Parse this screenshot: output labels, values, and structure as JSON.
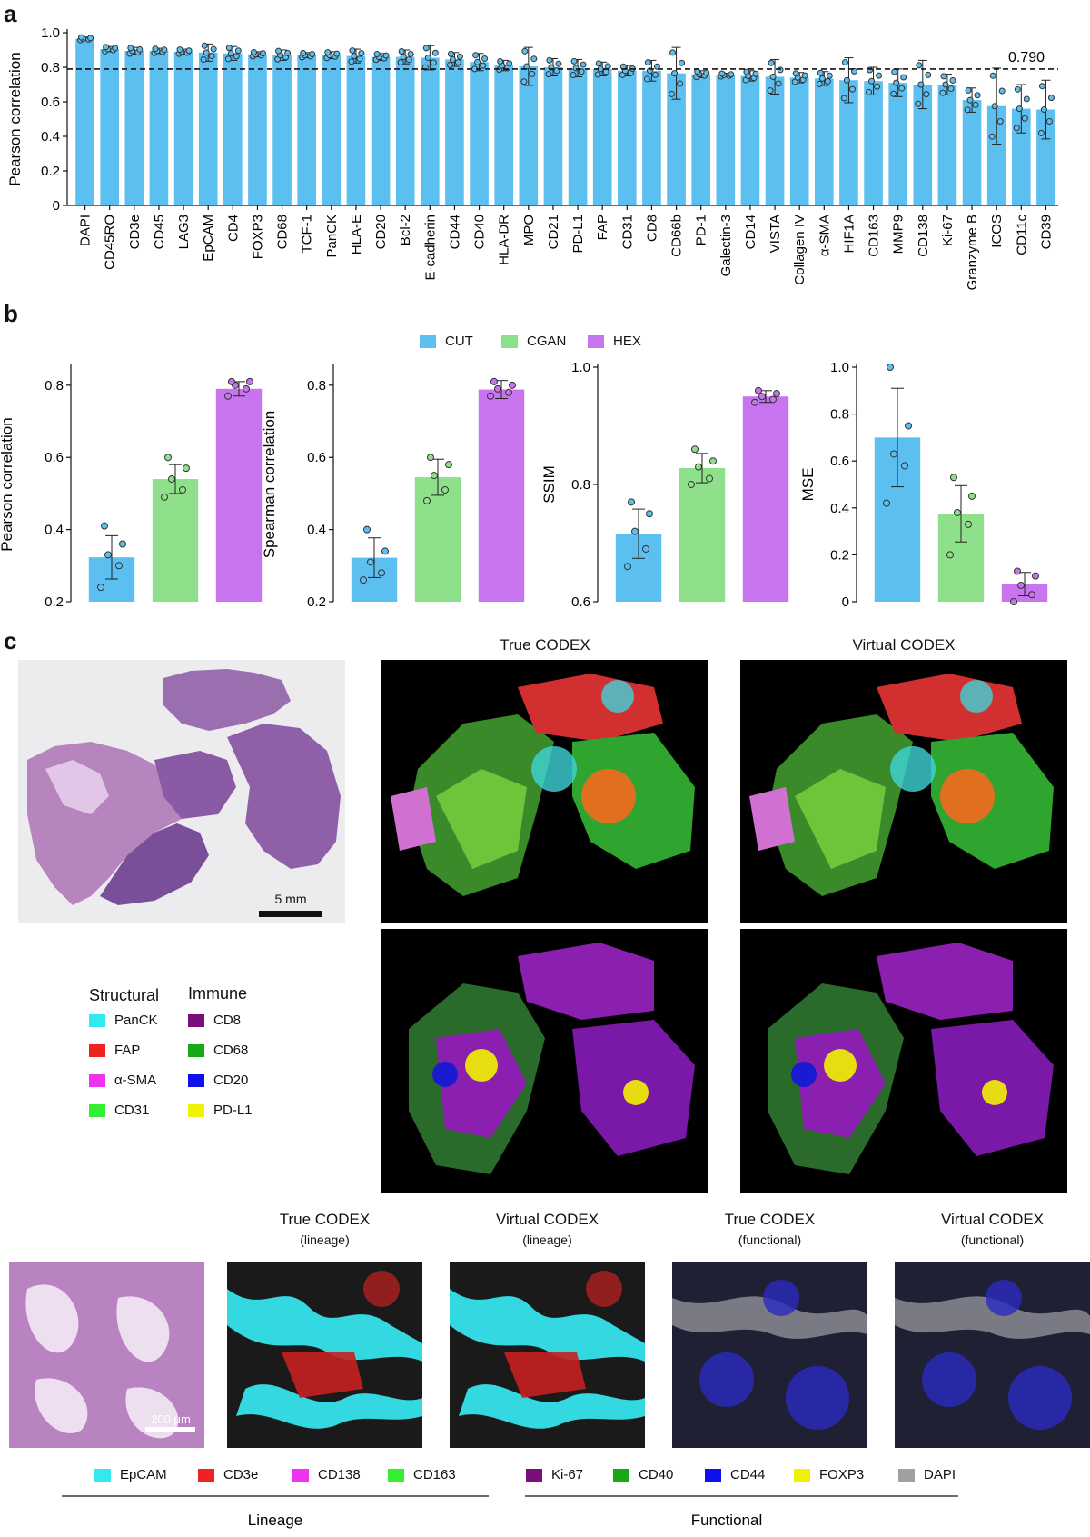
{
  "panel_labels": {
    "a": "a",
    "b": "b",
    "c": "c"
  },
  "colors": {
    "cut": "#5bbff0",
    "cgan": "#8fe08a",
    "hex": "#c774ee",
    "dot_edge": "#333333"
  },
  "chart_data": [
    {
      "id": "a",
      "type": "bar",
      "title": "",
      "ylabel": "Pearson correlation",
      "ylim": [
        0,
        1.0
      ],
      "yticks": [
        "0",
        "0.2",
        "0.4",
        "0.6",
        "0.8",
        "1.0"
      ],
      "reference_line": 0.79,
      "reference_label": "0.790",
      "categories": [
        "DAPI",
        "CD45RO",
        "CD3e",
        "CD45",
        "LAG3",
        "EpCAM",
        "CD4",
        "FOXP3",
        "CD68",
        "TCF-1",
        "PanCK",
        "HLA-E",
        "CD20",
        "Bcl-2",
        "E-cadherin",
        "CD44",
        "CD40",
        "HLA-DR",
        "MPO",
        "CD21",
        "PD-L1",
        "FAP",
        "CD31",
        "CD8",
        "CD66b",
        "PD-1",
        "Galectin-3",
        "CD14",
        "VISTA",
        "Collagen IV",
        "α-SMA",
        "HIF1A",
        "CD163",
        "MMP9",
        "CD138",
        "Ki-67",
        "Granzyme B",
        "ICOS",
        "CD11c",
        "CD39"
      ],
      "values": [
        0.965,
        0.905,
        0.895,
        0.895,
        0.89,
        0.885,
        0.88,
        0.875,
        0.87,
        0.87,
        0.87,
        0.865,
        0.86,
        0.86,
        0.855,
        0.845,
        0.83,
        0.81,
        0.805,
        0.8,
        0.795,
        0.79,
        0.78,
        0.78,
        0.765,
        0.76,
        0.755,
        0.75,
        0.745,
        0.74,
        0.735,
        0.725,
        0.72,
        0.71,
        0.7,
        0.7,
        0.61,
        0.575,
        0.56,
        0.555
      ],
      "errors": [
        0.01,
        0.015,
        0.02,
        0.015,
        0.015,
        0.05,
        0.04,
        0.015,
        0.03,
        0.015,
        0.02,
        0.04,
        0.02,
        0.04,
        0.07,
        0.04,
        0.05,
        0.03,
        0.11,
        0.05,
        0.05,
        0.04,
        0.03,
        0.06,
        0.15,
        0.02,
        0.01,
        0.03,
        0.1,
        0.03,
        0.04,
        0.13,
        0.08,
        0.08,
        0.14,
        0.06,
        0.07,
        0.22,
        0.14,
        0.17
      ]
    },
    {
      "id": "b1",
      "type": "bar",
      "ylabel": "Pearson correlation",
      "ylim": [
        0.2,
        0.85
      ],
      "yticks": [
        "0.2",
        "0.4",
        "0.6",
        "0.8"
      ],
      "ytick_values": [
        0.2,
        0.4,
        0.6,
        0.8
      ],
      "categories": [
        "CUT",
        "CGAN",
        "HEX"
      ],
      "values": [
        0.323,
        0.54,
        0.79
      ],
      "errors": [
        0.06,
        0.04,
        0.02
      ],
      "points": [
        [
          0.24,
          0.3,
          0.33,
          0.36,
          0.41
        ],
        [
          0.49,
          0.51,
          0.54,
          0.57,
          0.6
        ],
        [
          0.77,
          0.79,
          0.8,
          0.81,
          0.81
        ]
      ]
    },
    {
      "id": "b2",
      "type": "bar",
      "ylabel": "Spearman correlation",
      "ylim": [
        0.2,
        0.85
      ],
      "yticks": [
        "0.2",
        "0.4",
        "0.6",
        "0.8"
      ],
      "ytick_values": [
        0.2,
        0.4,
        0.6,
        0.8
      ],
      "categories": [
        "CUT",
        "CGAN",
        "HEX"
      ],
      "values": [
        0.322,
        0.545,
        0.788
      ],
      "errors": [
        0.055,
        0.05,
        0.025
      ],
      "points": [
        [
          0.26,
          0.28,
          0.31,
          0.34,
          0.4
        ],
        [
          0.48,
          0.51,
          0.55,
          0.58,
          0.6
        ],
        [
          0.77,
          0.78,
          0.79,
          0.8,
          0.81
        ]
      ]
    },
    {
      "id": "b3",
      "type": "bar",
      "ylabel": "SSIM",
      "ylim": [
        0.6,
        1.0
      ],
      "yticks": [
        "0.6",
        "0.8",
        "1.0"
      ],
      "ytick_values": [
        0.6,
        0.8,
        1.0
      ],
      "categories": [
        "CUT",
        "CGAN",
        "HEX"
      ],
      "values": [
        0.716,
        0.828,
        0.95
      ],
      "errors": [
        0.042,
        0.025,
        0.01
      ],
      "points": [
        [
          0.66,
          0.69,
          0.72,
          0.75,
          0.77
        ],
        [
          0.8,
          0.81,
          0.83,
          0.84,
          0.86
        ],
        [
          0.94,
          0.945,
          0.95,
          0.955,
          0.96
        ]
      ]
    },
    {
      "id": "b4",
      "type": "bar",
      "ylabel": "MSE",
      "ylim": [
        0,
        1.0
      ],
      "yticks": [
        "0",
        "0.2",
        "0.4",
        "0.6",
        "0.8",
        "1.0"
      ],
      "ytick_values": [
        0,
        0.2,
        0.4,
        0.6,
        0.8,
        1.0
      ],
      "categories": [
        "CUT",
        "CGAN",
        "HEX"
      ],
      "values": [
        0.7,
        0.375,
        0.075
      ],
      "errors": [
        0.21,
        0.12,
        0.05
      ],
      "points": [
        [
          0.42,
          0.58,
          0.63,
          0.75,
          1.0
        ],
        [
          0.2,
          0.33,
          0.38,
          0.45,
          0.53
        ],
        [
          0.0,
          0.03,
          0.07,
          0.11,
          0.13
        ]
      ]
    }
  ],
  "panel_b_legend": [
    {
      "label": "CUT",
      "color": "#5bbff0"
    },
    {
      "label": "CGAN",
      "color": "#8fe08a"
    },
    {
      "label": "HEX",
      "color": "#c774ee"
    }
  ],
  "panel_c": {
    "true_title": "True CODEX",
    "virtual_title": "Virtual CODEX",
    "scalebar_1": "5 mm",
    "scalebar_2": "200 μm",
    "structural_header": "Structural",
    "immune_header": "Immune",
    "structural_items": [
      {
        "label": "PanCK",
        "color": "#33e8ef"
      },
      {
        "label": "FAP",
        "color": "#ee2222"
      },
      {
        "label": "α-SMA",
        "color": "#ee33ee"
      },
      {
        "label": "CD31",
        "color": "#33ee33"
      }
    ],
    "immune_items": [
      {
        "label": "CD8",
        "color": "#7a0f7a"
      },
      {
        "label": "CD68",
        "color": "#16a816"
      },
      {
        "label": "CD20",
        "color": "#1010ee"
      },
      {
        "label": "PD-L1",
        "color": "#f2f200"
      }
    ],
    "bottom_titles": [
      {
        "title": "True CODEX",
        "sub": "(lineage)"
      },
      {
        "title": "Virtual CODEX",
        "sub": "(lineage)"
      },
      {
        "title": "True CODEX",
        "sub": "(functional)"
      },
      {
        "title": "Virtual CODEX",
        "sub": "(functional)"
      }
    ],
    "lineage_legend": [
      {
        "label": "EpCAM",
        "color": "#33e8ef"
      },
      {
        "label": "CD3e",
        "color": "#ee2222"
      },
      {
        "label": "CD138",
        "color": "#ee33ee"
      },
      {
        "label": "CD163",
        "color": "#33ee33"
      }
    ],
    "functional_legend": [
      {
        "label": "Ki-67",
        "color": "#7a0f7a"
      },
      {
        "label": "CD40",
        "color": "#16a816"
      },
      {
        "label": "CD44",
        "color": "#1010ee"
      },
      {
        "label": "FOXP3",
        "color": "#f2f200"
      },
      {
        "label": "DAPI",
        "color": "#a0a0a0"
      }
    ],
    "lineage_label": "Lineage",
    "functional_label": "Functional"
  }
}
